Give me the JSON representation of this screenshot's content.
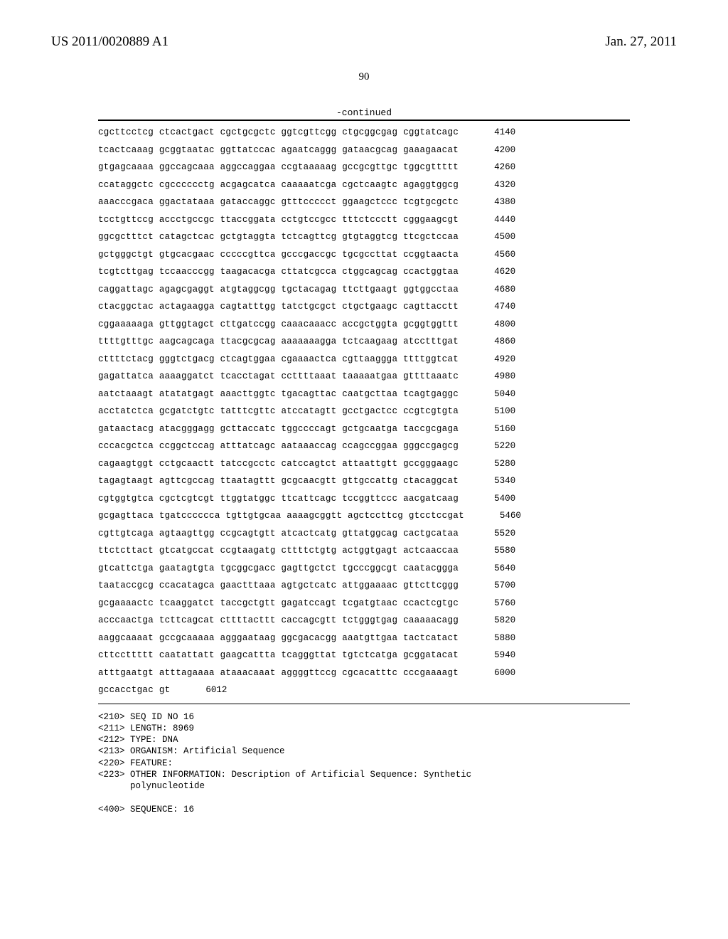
{
  "header": {
    "publication_number": "US 2011/0020889 A1",
    "publication_date": "Jan. 27, 2011",
    "page_number": "90"
  },
  "continued_label": "-continued",
  "sequence_rows": [
    {
      "groups": "cgcttcctcg ctcactgact cgctgcgctc ggtcgttcgg ctgcggcgag cggtatcagc",
      "pos": "4140"
    },
    {
      "groups": "tcactcaaag gcggtaatac ggttatccac agaatcaggg gataacgcag gaaagaacat",
      "pos": "4200"
    },
    {
      "groups": "gtgagcaaaa ggccagcaaa aggccaggaa ccgtaaaaag gccgcgttgc tggcgttttt",
      "pos": "4260"
    },
    {
      "groups": "ccataggctc cgcccccctg acgagcatca caaaaatcga cgctcaagtc agaggtggcg",
      "pos": "4320"
    },
    {
      "groups": "aaacccgaca ggactataaa gataccaggc gtttccccct ggaagctccc tcgtgcgctc",
      "pos": "4380"
    },
    {
      "groups": "tcctgttccg accctgccgc ttaccggata cctgtccgcc tttctccctt cgggaagcgt",
      "pos": "4440"
    },
    {
      "groups": "ggcgctttct catagctcac gctgtaggta tctcagttcg gtgtaggtcg ttcgctccaa",
      "pos": "4500"
    },
    {
      "groups": "gctgggctgt gtgcacgaac cccccgttca gcccgaccgc tgcgccttat ccggtaacta",
      "pos": "4560"
    },
    {
      "groups": "tcgtcttgag tccaacccgg taagacacga cttatcgcca ctggcagcag ccactggtaa",
      "pos": "4620"
    },
    {
      "groups": "caggattagc agagcgaggt atgtaggcgg tgctacagag ttcttgaagt ggtggcctaa",
      "pos": "4680"
    },
    {
      "groups": "ctacggctac actagaagga cagtatttgg tatctgcgct ctgctgaagc cagttacctt",
      "pos": "4740"
    },
    {
      "groups": "cggaaaaaga gttggtagct cttgatccgg caaacaaacc accgctggta gcggtggttt",
      "pos": "4800"
    },
    {
      "groups": "ttttgtttgc aagcagcaga ttacgcgcag aaaaaaagga tctcaagaag atcctttgat",
      "pos": "4860"
    },
    {
      "groups": "cttttctacg gggtctgacg ctcagtggaa cgaaaactca cgttaaggga ttttggtcat",
      "pos": "4920"
    },
    {
      "groups": "gagattatca aaaaggatct tcacctagat ccttttaaat taaaaatgaa gttttaaatc",
      "pos": "4980"
    },
    {
      "groups": "aatctaaagt atatatgagt aaacttggtc tgacagttac caatgcttaa tcagtgaggc",
      "pos": "5040"
    },
    {
      "groups": "acctatctca gcgatctgtc tatttcgttc atccatagtt gcctgactcc ccgtcgtgta",
      "pos": "5100"
    },
    {
      "groups": "gataactacg atacgggagg gcttaccatc tggccccagt gctgcaatga taccgcgaga",
      "pos": "5160"
    },
    {
      "groups": "cccacgctca ccggctccag atttatcagc aataaaccag ccagccggaa gggccgagcg",
      "pos": "5220"
    },
    {
      "groups": "cagaagtggt cctgcaactt tatccgcctc catccagtct attaattgtt gccgggaagc",
      "pos": "5280"
    },
    {
      "groups": "tagagtaagt agttcgccag ttaatagttt gcgcaacgtt gttgccattg ctacaggcat",
      "pos": "5340"
    },
    {
      "groups": "cgtggtgtca cgctcgtcgt ttggtatggc ttcattcagc tccggttccc aacgatcaag",
      "pos": "5400"
    },
    {
      "groups": "gcgagttaca tgatcccccca tgttgtgcaa aaaagcggtt agctccttcg gtcctccgat",
      "pos": "5460"
    },
    {
      "groups": "cgttgtcaga agtaagttgg ccgcagtgtt atcactcatg gttatggcag cactgcataa",
      "pos": "5520"
    },
    {
      "groups": "ttctcttact gtcatgccat ccgtaagatg cttttctgtg actggtgagt actcaaccaa",
      "pos": "5580"
    },
    {
      "groups": "gtcattctga gaatagtgta tgcggcgacc gagttgctct tgcccggcgt caatacggga",
      "pos": "5640"
    },
    {
      "groups": "taataccgcg ccacatagca gaactttaaa agtgctcatc attggaaaac gttcttcggg",
      "pos": "5700"
    },
    {
      "groups": "gcgaaaactc tcaaggatct taccgctgtt gagatccagt tcgatgtaac ccactcgtgc",
      "pos": "5760"
    },
    {
      "groups": "acccaactga tcttcagcat cttttacttt caccagcgtt tctgggtgag caaaaacagg",
      "pos": "5820"
    },
    {
      "groups": "aaggcaaaat gccgcaaaaa agggaataag ggcgacacgg aaatgttgaa tactcatact",
      "pos": "5880"
    },
    {
      "groups": "cttccttttt caatattatt gaagcattta tcagggttat tgtctcatga gcggatacat",
      "pos": "5940"
    },
    {
      "groups": "atttgaatgt atttagaaaa ataaacaaat aggggttccg cgcacatttc cccgaaaagt",
      "pos": "6000"
    },
    {
      "groups": "gccacctgac gt",
      "pos": "6012"
    }
  ],
  "meta": {
    "line1": "<210> SEQ ID NO 16",
    "line2": "<211> LENGTH: 8969",
    "line3": "<212> TYPE: DNA",
    "line4": "<213> ORGANISM: Artificial Sequence",
    "line5": "<220> FEATURE:",
    "line6": "<223> OTHER INFORMATION: Description of Artificial Sequence: Synthetic",
    "line7": "      polynucleotide",
    "line8": "",
    "line9": "<400> SEQUENCE: 16"
  }
}
